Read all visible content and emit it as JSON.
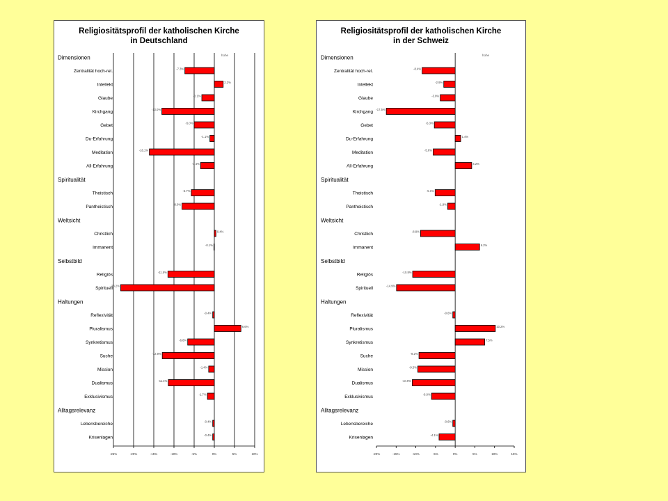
{
  "chart_data": [
    {
      "type": "bar",
      "orientation": "horizontal",
      "title": "Religiositätsprofil der katholischen Kirche",
      "subtitle": "in Deutschland",
      "legend_label": "hohe",
      "xlim": [
        -25,
        10
      ],
      "xticks": [
        "-25%",
        "-20%",
        "-15%",
        "-10%",
        "-5%",
        "0%",
        "5%",
        "10%"
      ],
      "grid": true,
      "bar_color": "#ff0000",
      "rows": [
        {
          "kind": "header",
          "label": "Dimensionen"
        },
        {
          "kind": "bar",
          "label": "Zentralität hoch-rel.",
          "value": -7.3,
          "value_label": "-7.3%"
        },
        {
          "kind": "bar",
          "label": "Intellekt",
          "value": 2.2,
          "value_label": "2.2%"
        },
        {
          "kind": "bar",
          "label": "Glaube",
          "value": -3.1,
          "value_label": "-3.1%"
        },
        {
          "kind": "bar",
          "label": "Kirchgang",
          "value": -13.0,
          "value_label": "-13.0%"
        },
        {
          "kind": "bar",
          "label": "Gebet",
          "value": -5.0,
          "value_label": "-5.0%"
        },
        {
          "kind": "bar",
          "label": "Du-Erfahrung",
          "value": -1.1,
          "value_label": "-1.1%"
        },
        {
          "kind": "bar",
          "label": "Meditation",
          "value": -16.1,
          "value_label": "-16.1%"
        },
        {
          "kind": "bar",
          "label": "All-Erfahrung",
          "value": -3.4,
          "value_label": "-3.4%"
        },
        {
          "kind": "header",
          "label": "Spiritualität"
        },
        {
          "kind": "bar",
          "label": "Theistisch",
          "value": -5.7,
          "value_label": "-5.7%"
        },
        {
          "kind": "bar",
          "label": "Pantheistisch",
          "value": -8.0,
          "value_label": "-8.0%"
        },
        {
          "kind": "header",
          "label": "Weltsicht"
        },
        {
          "kind": "bar",
          "label": "Christlich",
          "value": 0.4,
          "value_label": "0.4%"
        },
        {
          "kind": "bar",
          "label": "Immanent",
          "value": -0.1,
          "value_label": "-0.1%"
        },
        {
          "kind": "header",
          "label": "Selbstbild"
        },
        {
          "kind": "bar",
          "label": "Religiös",
          "value": -11.5,
          "value_label": "-11.5%"
        },
        {
          "kind": "bar",
          "label": "Spirituell",
          "value": -23.2,
          "value_label": "-23.2%"
        },
        {
          "kind": "header",
          "label": "Haltungen"
        },
        {
          "kind": "bar",
          "label": "Reflexivität",
          "value": -0.4,
          "value_label": "-0.4%"
        },
        {
          "kind": "bar",
          "label": "Pluralismus",
          "value": 6.6,
          "value_label": "6.6%"
        },
        {
          "kind": "bar",
          "label": "Synkretismus",
          "value": -6.6,
          "value_label": "-6.6%"
        },
        {
          "kind": "bar",
          "label": "Suche",
          "value": -12.9,
          "value_label": "-12.9%"
        },
        {
          "kind": "bar",
          "label": "Mission",
          "value": -1.4,
          "value_label": "-1.4%"
        },
        {
          "kind": "bar",
          "label": "Dualismus",
          "value": -11.4,
          "value_label": "-11.4%"
        },
        {
          "kind": "bar",
          "label": "Exklusivismus",
          "value": -1.7,
          "value_label": "-1.7%"
        },
        {
          "kind": "header",
          "label": "Alltagsrelevanz"
        },
        {
          "kind": "bar",
          "label": "Lebensbereiche",
          "value": -0.4,
          "value_label": "-0.4%"
        },
        {
          "kind": "bar",
          "label": "Krisenlagen",
          "value": -0.4,
          "value_label": "-0.4%"
        }
      ]
    },
    {
      "type": "bar",
      "orientation": "horizontal",
      "title": "Religiositätsprofil der katholischen Kirche",
      "subtitle": "in der Schweiz",
      "legend_label": "hohe",
      "xlim": [
        -20,
        15
      ],
      "xticks": [
        "-20%",
        "-15%",
        "-10%",
        "-5%",
        "0%",
        "5%",
        "10%",
        "15%"
      ],
      "grid": false,
      "bar_color": "#ff0000",
      "rows": [
        {
          "kind": "header",
          "label": "Dimensionen"
        },
        {
          "kind": "bar",
          "label": "Zentralität hoch-rel.",
          "value": -8.4,
          "value_label": "-8.4%"
        },
        {
          "kind": "bar",
          "label": "Intellekt",
          "value": -2.9,
          "value_label": "-2.9%"
        },
        {
          "kind": "bar",
          "label": "Glaube",
          "value": -3.8,
          "value_label": "-3.8%"
        },
        {
          "kind": "bar",
          "label": "Kirchgang",
          "value": -17.5,
          "value_label": "-17.5%"
        },
        {
          "kind": "bar",
          "label": "Gebet",
          "value": -5.3,
          "value_label": "-5.3%"
        },
        {
          "kind": "bar",
          "label": "Du-Erfahrung",
          "value": 1.4,
          "value_label": "1.4%"
        },
        {
          "kind": "bar",
          "label": "Meditation",
          "value": -5.6,
          "value_label": "-5.6%"
        },
        {
          "kind": "bar",
          "label": "All-Erfahrung",
          "value": 4.2,
          "value_label": "4.2%"
        },
        {
          "kind": "header",
          "label": "Spiritualität"
        },
        {
          "kind": "bar",
          "label": "Theistisch",
          "value": -5.1,
          "value_label": "-5.1%"
        },
        {
          "kind": "bar",
          "label": "Pantheistisch",
          "value": -1.9,
          "value_label": "-1.9%"
        },
        {
          "kind": "header",
          "label": "Weltsicht"
        },
        {
          "kind": "bar",
          "label": "Christlich",
          "value": -8.8,
          "value_label": "-8.8%"
        },
        {
          "kind": "bar",
          "label": "Immanent",
          "value": 6.2,
          "value_label": "6.2%"
        },
        {
          "kind": "header",
          "label": "Selbstbild"
        },
        {
          "kind": "bar",
          "label": "Religiös",
          "value": -10.8,
          "value_label": "-10.8%"
        },
        {
          "kind": "bar",
          "label": "Spirituell",
          "value": -14.9,
          "value_label": "-14.9%"
        },
        {
          "kind": "header",
          "label": "Haltungen"
        },
        {
          "kind": "bar",
          "label": "Reflexivität",
          "value": -0.6,
          "value_label": "-0.6%"
        },
        {
          "kind": "bar",
          "label": "Pluralismus",
          "value": 10.2,
          "value_label": "10.2%"
        },
        {
          "kind": "bar",
          "label": "Synkretismus",
          "value": 7.5,
          "value_label": "7.5%"
        },
        {
          "kind": "bar",
          "label": "Suche",
          "value": -9.2,
          "value_label": "-9.2%"
        },
        {
          "kind": "bar",
          "label": "Mission",
          "value": -9.5,
          "value_label": "-9.5%"
        },
        {
          "kind": "bar",
          "label": "Dualismus",
          "value": -10.9,
          "value_label": "-10.9%"
        },
        {
          "kind": "bar",
          "label": "Exklusivismus",
          "value": -6.0,
          "value_label": "-6.0%"
        },
        {
          "kind": "header",
          "label": "Alltagsrelevanz"
        },
        {
          "kind": "bar",
          "label": "Lebensbereiche",
          "value": -0.6,
          "value_label": "-0.6%"
        },
        {
          "kind": "bar",
          "label": "Krisenlagen",
          "value": -4.1,
          "value_label": "-4.1%"
        }
      ]
    }
  ]
}
